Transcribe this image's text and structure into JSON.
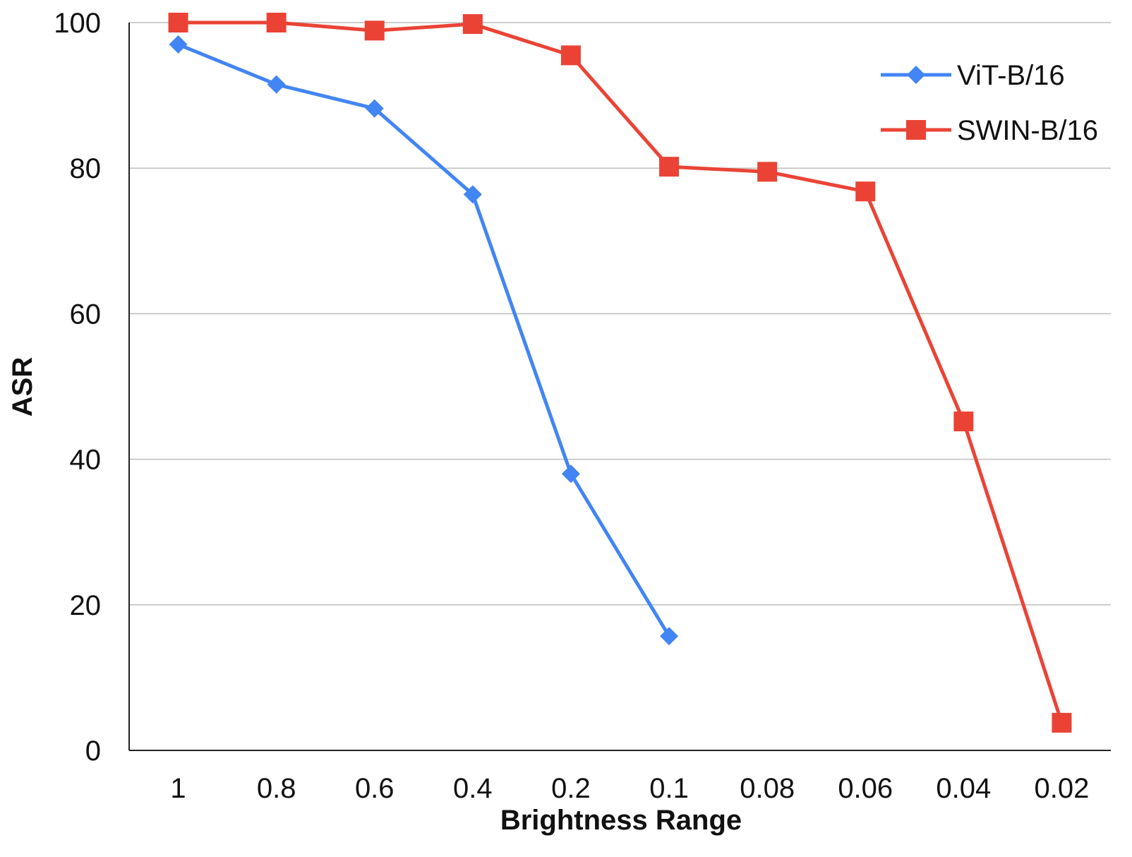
{
  "chart_data": {
    "type": "line",
    "title": "",
    "xlabel": "Brightness Range",
    "ylabel": "ASR",
    "categories": [
      "1",
      "0.8",
      "0.6",
      "0.4",
      "0.2",
      "0.1",
      "0.08",
      "0.06",
      "0.04",
      "0.02"
    ],
    "ylim": [
      0,
      100
    ],
    "yticks": [
      "0",
      "20",
      "40",
      "60",
      "80",
      "100"
    ],
    "grid": true,
    "legend_position": "top-right",
    "series": [
      {
        "name": "ViT-B/16",
        "color": "#4285f4",
        "marker": "diamond",
        "values": [
          97,
          91.5,
          88.2,
          76.4,
          38,
          15.7,
          null,
          null,
          null,
          null
        ]
      },
      {
        "name": "SWIN-B/16",
        "color": "#ea4335",
        "marker": "square",
        "values": [
          100,
          100,
          98.9,
          99.8,
          95.5,
          80.2,
          79.5,
          76.8,
          45.2,
          3.8
        ]
      }
    ]
  }
}
